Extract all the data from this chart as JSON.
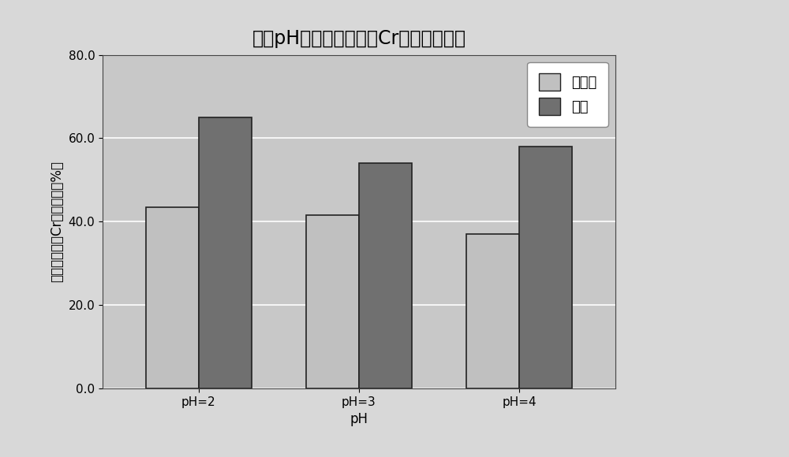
{
  "title": "不同pH对污泥中重金属Cr去除率的影响",
  "xlabel": "pH",
  "ylabel": "污泥中重金属Cr的去除率（%）",
  "categories": [
    "pH=2",
    "pH=3",
    "pH=4"
  ],
  "series": [
    {
      "label": "未超声",
      "values": [
        43.5,
        41.5,
        37.0
      ],
      "color": "#c0c0c0"
    },
    {
      "label": "超声",
      "values": [
        65.0,
        54.0,
        58.0
      ],
      "color": "#707070"
    }
  ],
  "ylim": [
    0,
    80
  ],
  "yticks": [
    0.0,
    20.0,
    40.0,
    60.0,
    80.0
  ],
  "ytick_labels": [
    "0.0",
    "20.0",
    "40.0",
    "60.0",
    "80.0"
  ],
  "bar_width": 0.33,
  "plot_bg_color": "#c8c8c8",
  "outer_bg": "#d8d8d8",
  "legend_bg": "#ffffff",
  "title_fontsize": 17,
  "axis_label_fontsize": 12,
  "tick_fontsize": 11,
  "legend_fontsize": 13,
  "grid_color": "#ffffff",
  "bar_edge_color": "#222222",
  "bar_edge_width": 1.2
}
